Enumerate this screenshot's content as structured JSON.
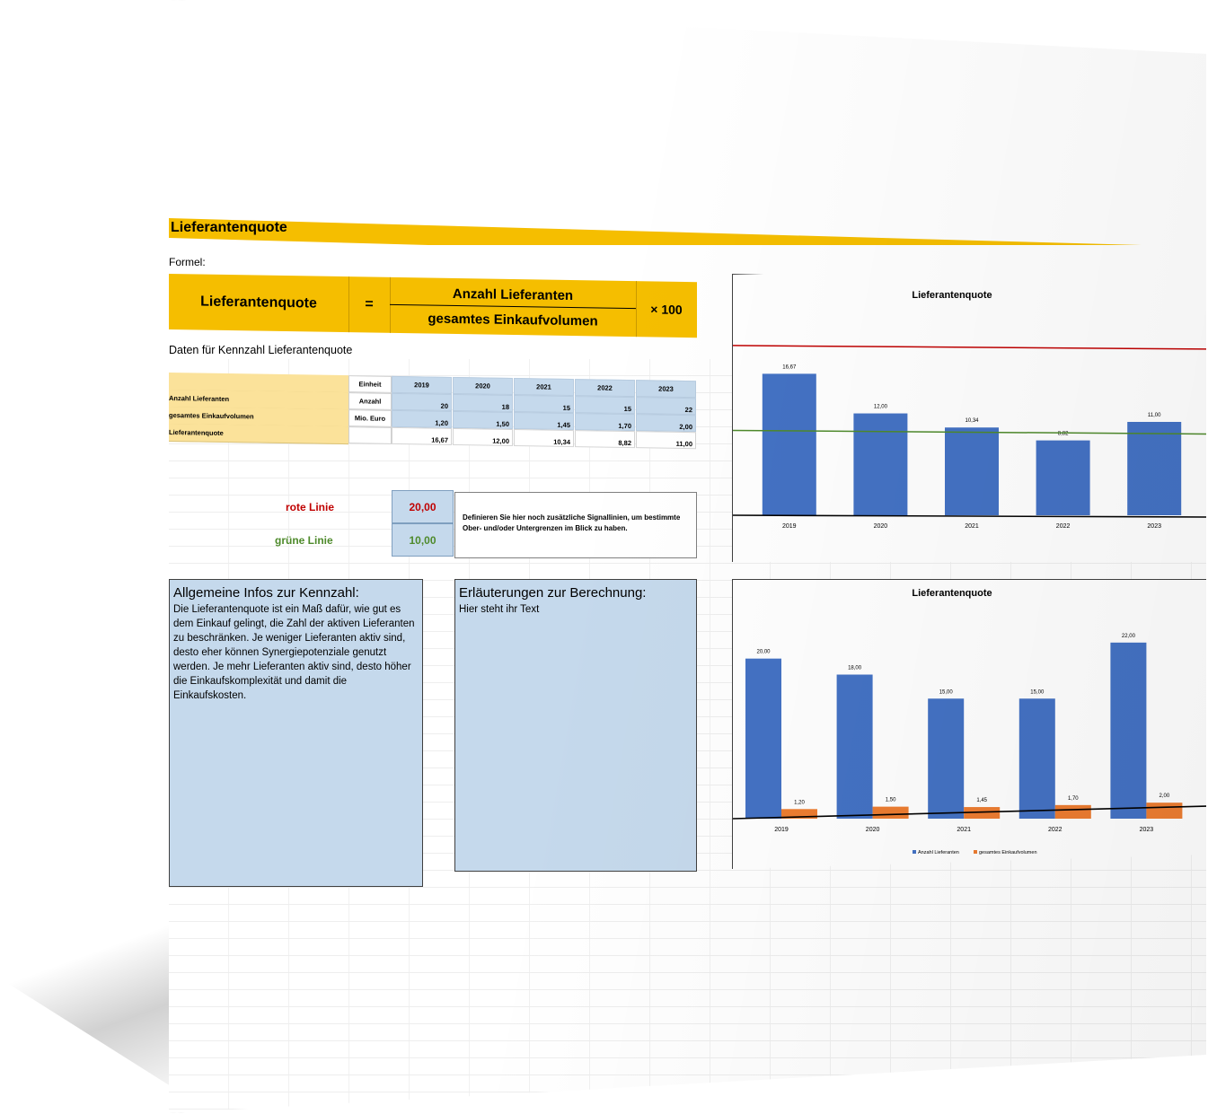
{
  "title": "Lieferantenquote",
  "formula_label": "Formel:",
  "formula": {
    "name": "Lieferantenquote",
    "equals": "=",
    "numerator": "Anzahl Lieferanten",
    "denominator": "gesamtes Einkaufvolumen",
    "multiplier": "× 100"
  },
  "data_label": "Daten für Kennzahl Lieferantenquote",
  "table": {
    "unit_header": "Einheit",
    "years": [
      "2019",
      "2020",
      "2021",
      "2022",
      "2023"
    ],
    "rows": [
      {
        "label": "Anzahl Lieferanten",
        "unit": "Anzahl",
        "values": [
          "20",
          "18",
          "15",
          "15",
          "22"
        ]
      },
      {
        "label": "gesamtes Einkaufvolumen",
        "unit": "Mio. Euro",
        "values": [
          "1,20",
          "1,50",
          "1,45",
          "1,70",
          "2,00"
        ]
      },
      {
        "label": "Lieferantenquote",
        "unit": "",
        "values": [
          "16,67",
          "12,00",
          "10,34",
          "8,82",
          "11,00"
        ]
      }
    ]
  },
  "signals": {
    "red_label": "rote Linie",
    "red_value": "20,00",
    "green_label": "grüne Linie",
    "green_value": "10,00",
    "note": "Definieren Sie hier noch zusätzliche Signallinien, um bestimmte Ober- und/oder Untergrenzen im Blick zu haben."
  },
  "info_general": {
    "heading": "Allgemeine Infos zur Kennzahl:",
    "text": "Die Lieferantenquote ist ein Maß dafür, wie gut es dem Einkauf gelingt, die Zahl der aktiven Lieferanten zu beschränken. Je weniger Lieferanten aktiv sind, desto eher können Synergiepotenziale genutzt werden. Je mehr Lieferanten aktiv sind, desto höher die Einkaufskomplexität und damit die Einkaufskosten."
  },
  "info_calc": {
    "heading": "Erläuterungen zur Berechnung:",
    "text": "Hier steht ihr Text"
  },
  "colors": {
    "accent": "#f5be00",
    "light_yellow": "#fbe29a",
    "light_blue": "#c5d9ec",
    "bar_blue": "#4472c4",
    "bar_orange": "#ed7d31",
    "red": "#c00000",
    "green": "#4e8a2b"
  },
  "chart_data": [
    {
      "type": "bar",
      "title": "Lieferantenquote",
      "categories": [
        "2019",
        "2020",
        "2021",
        "2022",
        "2023"
      ],
      "series": [
        {
          "values": [
            16.67,
            12.0,
            10.34,
            8.82,
            11.0
          ]
        }
      ],
      "data_labels": [
        "16,67",
        "12,00",
        "10,34",
        "8,82",
        "11,00"
      ],
      "reference_lines": [
        {
          "value": 20.0,
          "color": "#c00000"
        },
        {
          "value": 10.0,
          "color": "#4e8a2b"
        }
      ],
      "ylim": [
        0,
        22
      ]
    },
    {
      "type": "bar",
      "title": "Lieferantenquote",
      "categories": [
        "2019",
        "2020",
        "2021",
        "2022",
        "2023"
      ],
      "series": [
        {
          "name": "Anzahl Lieferanten",
          "values": [
            20.0,
            18.0,
            15.0,
            15.0,
            22.0
          ],
          "labels": [
            "20,00",
            "18,00",
            "15,00",
            "15,00",
            "22,00"
          ]
        },
        {
          "name": "gesamtes Einkaufvolumen",
          "values": [
            1.2,
            1.5,
            1.45,
            1.7,
            2.0
          ],
          "labels": [
            "1,20",
            "1,50",
            "1,45",
            "1,70",
            "2,00"
          ]
        }
      ],
      "legend": "bottom",
      "ylim": [
        0,
        24
      ]
    }
  ]
}
